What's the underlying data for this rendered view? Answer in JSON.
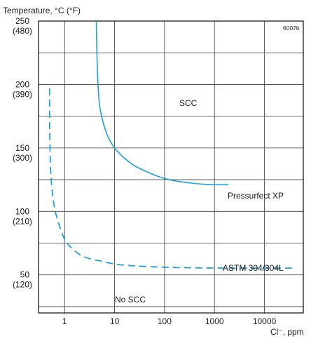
{
  "chart_data": {
    "type": "line",
    "title": "",
    "ylabel": "Temperature, °C (°F)",
    "xlabel": "Cl⁻, ppm",
    "figure_code": "6007b",
    "x_scale": "log",
    "xlim": [
      0.3,
      60000
    ],
    "ylim": [
      20,
      250
    ],
    "grid": true,
    "x_ticks": [
      {
        "value": 1,
        "label": "1"
      },
      {
        "value": 10,
        "label": "10"
      },
      {
        "value": 100,
        "label": "100"
      },
      {
        "value": 1000,
        "label": "1000"
      },
      {
        "value": 10000,
        "label": "10000"
      }
    ],
    "y_ticks": [
      {
        "value": 250,
        "label": "250",
        "label2": "(480)"
      },
      {
        "value": 200,
        "label": "200",
        "label2": "(390)"
      },
      {
        "value": 150,
        "label": "150",
        "label2": "(300)"
      },
      {
        "value": 100,
        "label": "100",
        "label2": "(210)"
      },
      {
        "value": 50,
        "label": "50",
        "label2": "(120)"
      }
    ],
    "series": [
      {
        "name": "Pressurfect XP",
        "style": "solid",
        "color": "#1ea0d6",
        "x": [
          4.3,
          4.4,
          4.5,
          4.7,
          5,
          5.5,
          6,
          7,
          8,
          10,
          13,
          18,
          25,
          40,
          70,
          100,
          150,
          250,
          400,
          700,
          1200,
          1900
        ],
        "y": [
          250,
          230,
          215,
          197,
          184,
          175,
          169,
          161,
          156,
          150,
          145,
          140,
          136,
          132,
          128,
          126,
          124.3,
          123,
          122,
          121.3,
          121,
          121
        ]
      },
      {
        "name": "ASTM 304/304L",
        "style": "dashed",
        "color": "#1ea0d6",
        "x": [
          0.5,
          0.5,
          0.51,
          0.52,
          0.55,
          0.6,
          0.7,
          0.85,
          1,
          1.3,
          2,
          3,
          5,
          10,
          20,
          50,
          100,
          300,
          1000,
          5000,
          40000
        ],
        "y": [
          197,
          170,
          150,
          135,
          120,
          107,
          95,
          85,
          78,
          72,
          66,
          63,
          61,
          58.5,
          57.3,
          56.5,
          56,
          55.6,
          55.4,
          55.3,
          55.3
        ]
      }
    ],
    "annotations": {
      "scc": "SCC",
      "no_scc": "No SCC"
    },
    "colors": {
      "line": "#1ea0d6",
      "grid": "#3a3a3a",
      "frame": "#1a1a1a"
    }
  }
}
